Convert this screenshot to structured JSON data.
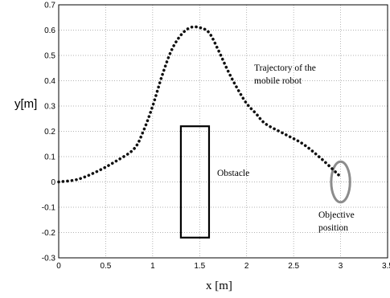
{
  "chart_data": {
    "type": "line",
    "xlabel": "x [m]",
    "ylabel": "y[m]",
    "xlim": [
      0,
      3.5
    ],
    "ylim": [
      -0.3,
      0.7
    ],
    "x_ticks": [
      "0",
      "0.5",
      "1",
      "1.5",
      "2",
      "2.5",
      "3",
      "3.5"
    ],
    "y_ticks": [
      "-0.3",
      "-0.2",
      "-0.1",
      "0",
      "0.1",
      "0.2",
      "0.3",
      "0.4",
      "0.5",
      "0.6",
      "0.7"
    ],
    "grid": true,
    "series": [
      {
        "x": [
          0,
          0.2,
          0.4,
          0.6,
          0.8,
          0.9,
          1.0,
          1.1,
          1.2,
          1.3,
          1.4,
          1.5,
          1.6,
          1.7,
          1.8,
          1.9,
          2.0,
          2.1,
          2.2,
          2.4,
          2.6,
          2.8,
          3.0
        ],
        "y": [
          0,
          0.01,
          0.04,
          0.08,
          0.13,
          0.2,
          0.3,
          0.42,
          0.52,
          0.58,
          0.61,
          0.61,
          0.59,
          0.52,
          0.44,
          0.37,
          0.31,
          0.27,
          0.23,
          0.19,
          0.15,
          0.09,
          0.02
        ],
        "style": "dotted",
        "color": "#111111"
      }
    ],
    "shapes": [
      {
        "kind": "rectangle",
        "x_range": [
          1.3,
          1.6
        ],
        "y_range": [
          -0.22,
          0.22
        ],
        "color": "#000000"
      },
      {
        "kind": "ellipse",
        "center": [
          3.0,
          0.0
        ],
        "rx": 0.1,
        "ry": 0.08,
        "color": "#8c8c8c"
      }
    ],
    "annotations": [
      {
        "id": "trajectory",
        "lines": [
          "Trajectory of the",
          "mobile robot"
        ]
      },
      {
        "id": "obstacle",
        "lines": [
          "Obstacle"
        ]
      },
      {
        "id": "objective",
        "lines": [
          "Objective",
          "position"
        ]
      }
    ]
  }
}
